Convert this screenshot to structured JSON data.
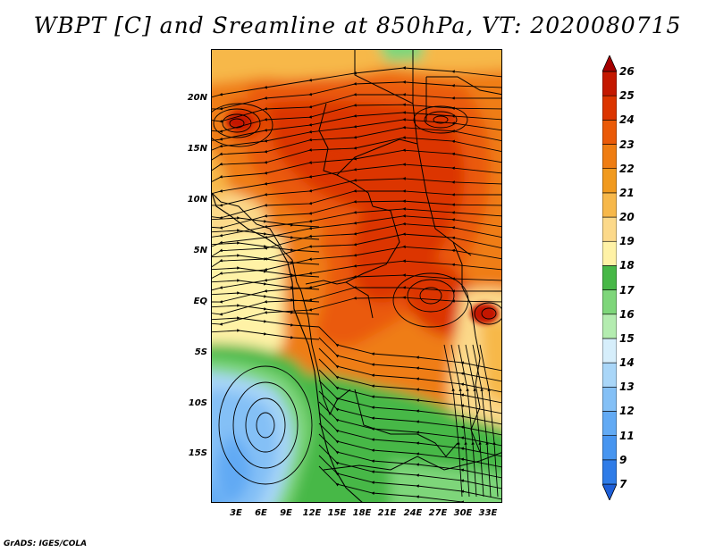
{
  "title": "WBPT [C] and Sreamline at 850hPa, VT: 2020080715",
  "footer": "GrADS: IGES/COLA",
  "axes": {
    "lat_labels": [
      "20N",
      "15N",
      "10N",
      "5N",
      "EQ",
      "5S",
      "10S",
      "15S"
    ],
    "lon_labels": [
      "3E",
      "6E",
      "9E",
      "12E",
      "15E",
      "18E",
      "21E",
      "24E",
      "27E",
      "30E",
      "33E"
    ]
  },
  "colorbar": {
    "labels": [
      "7",
      "9",
      "11",
      "12",
      "13",
      "14",
      "15",
      "16",
      "17",
      "18",
      "19",
      "20",
      "21",
      "22",
      "23",
      "24",
      "25",
      "26"
    ],
    "colors": [
      "#1e5fd8",
      "#2f7ce8",
      "#4795f0",
      "#62aaf4",
      "#84c0f6",
      "#a9d6f8",
      "#d6eefb",
      "#b4ecb0",
      "#7ed67a",
      "#47b847",
      "#fff2a6",
      "#fcd98a",
      "#f7b84a",
      "#f19a1e",
      "#ef7d12",
      "#ea5a08",
      "#dc3500",
      "#c41800",
      "#a50000"
    ]
  },
  "field": {
    "name": "Wet-bulb potential temperature",
    "level": "850hPa",
    "valid_time": "2020080715"
  }
}
